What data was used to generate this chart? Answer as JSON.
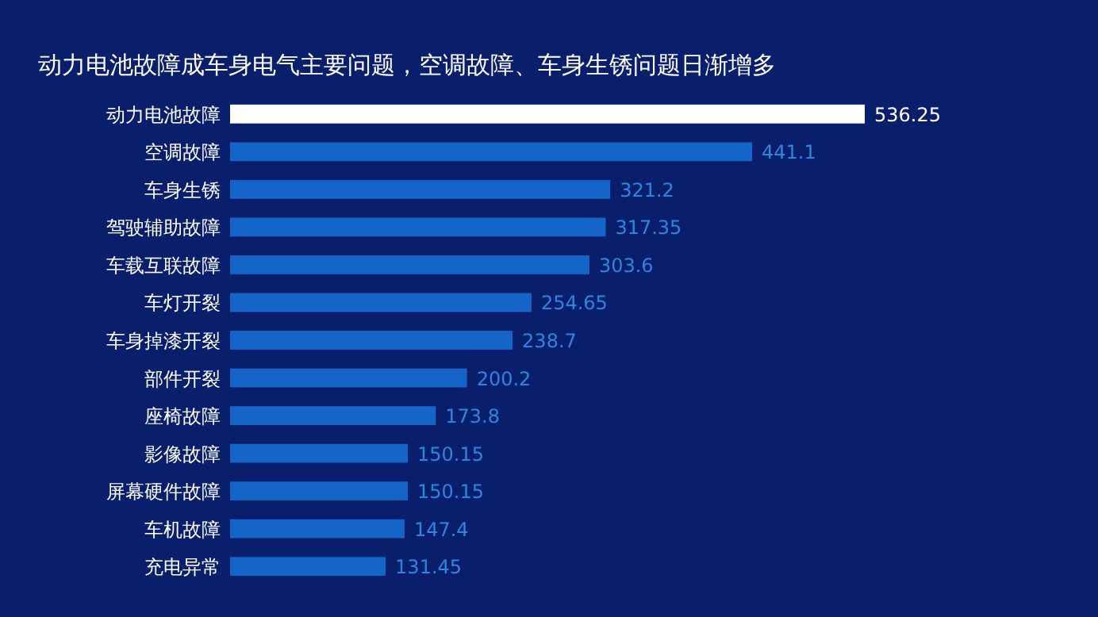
{
  "chart_data": {
    "type": "bar",
    "orientation": "horizontal",
    "title": "动力电池故障成车身电气主要问题，空调故障、车身生锈问题日渐增多",
    "categories": [
      "动力电池故障",
      "空调故障",
      "车身生锈",
      "驾驶辅助故障",
      "车载互联故障",
      "车灯开裂",
      "车身掉漆开裂",
      "部件开裂",
      "座椅故障",
      "影像故障",
      "屏幕硬件故障",
      "车机故障",
      "充电异常"
    ],
    "values": [
      536.25,
      441.1,
      321.2,
      317.35,
      303.6,
      254.65,
      238.7,
      200.2,
      173.8,
      150.15,
      150.15,
      147.4,
      131.45
    ],
    "colors": [
      "#ffffff",
      "#1565c8",
      "#1565c8",
      "#1565c8",
      "#1565c8",
      "#1565c8",
      "#1565c8",
      "#1565c8",
      "#1565c8",
      "#1565c8",
      "#1565c8",
      "#1565c8",
      "#1565c8"
    ],
    "value_labels": [
      "536.25",
      "441.1",
      "321.2",
      "317.35",
      "303.6",
      "254.65",
      "238.7",
      "200.2",
      "173.8",
      "150.15",
      "150.15",
      "147.4",
      "131.45"
    ],
    "xlim": [
      0,
      536.25
    ]
  }
}
